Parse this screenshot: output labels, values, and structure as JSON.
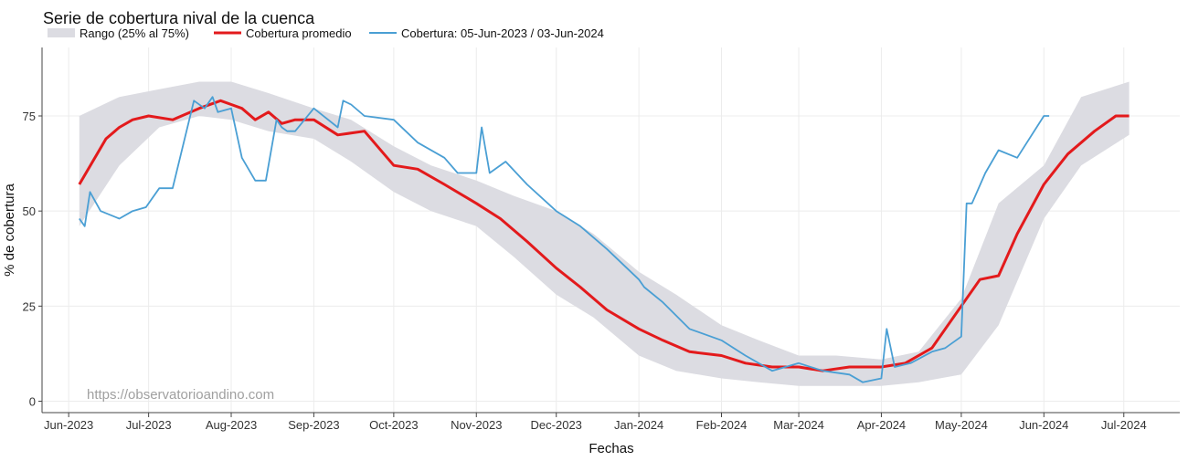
{
  "chart_data": {
    "type": "line",
    "title": "Serie de cobertura nival de la cuenca",
    "xlabel": "Fechas",
    "ylabel": "% de cobertura",
    "ylim": [
      -3,
      93
    ],
    "xlim": [
      "2023-05-22",
      "2024-07-22"
    ],
    "y_ticks": [
      0,
      25,
      50,
      75
    ],
    "x_ticks": [
      {
        "date": "2023-06-01",
        "label": "Jun-2023"
      },
      {
        "date": "2023-07-01",
        "label": "Jul-2023"
      },
      {
        "date": "2023-08-01",
        "label": "Aug-2023"
      },
      {
        "date": "2023-09-01",
        "label": "Sep-2023"
      },
      {
        "date": "2023-10-01",
        "label": "Oct-2023"
      },
      {
        "date": "2023-11-01",
        "label": "Nov-2023"
      },
      {
        "date": "2023-12-01",
        "label": "Dec-2023"
      },
      {
        "date": "2024-01-01",
        "label": "Jan-2024"
      },
      {
        "date": "2024-02-01",
        "label": "Feb-2024"
      },
      {
        "date": "2024-03-01",
        "label": "Mar-2024"
      },
      {
        "date": "2024-04-01",
        "label": "Apr-2024"
      },
      {
        "date": "2024-05-01",
        "label": "May-2024"
      },
      {
        "date": "2024-06-01",
        "label": "Jun-2024"
      },
      {
        "date": "2024-07-01",
        "label": "Jul-2024"
      }
    ],
    "grid": true,
    "legend_position": "top-left",
    "watermark": "https://observatorioandino.com",
    "series": [
      {
        "name": "Rango (25% al 75%)",
        "kind": "band",
        "color": "#dcdce2",
        "x": [
          "2023-06-05",
          "2023-06-20",
          "2023-07-05",
          "2023-07-20",
          "2023-08-01",
          "2023-08-15",
          "2023-09-01",
          "2023-09-15",
          "2023-10-01",
          "2023-10-15",
          "2023-11-01",
          "2023-11-15",
          "2023-12-01",
          "2023-12-15",
          "2024-01-01",
          "2024-01-15",
          "2024-02-01",
          "2024-02-15",
          "2024-03-01",
          "2024-03-15",
          "2024-04-01",
          "2024-04-15",
          "2024-05-01",
          "2024-05-15",
          "2024-06-01",
          "2024-06-15",
          "2024-07-03"
        ],
        "upper": [
          75,
          80,
          82,
          84,
          84,
          81,
          77,
          74,
          67,
          62,
          58,
          54,
          50,
          44,
          34,
          28,
          20,
          16,
          12,
          12,
          11,
          13,
          27,
          52,
          62,
          80,
          84
        ],
        "lower": [
          46,
          62,
          72,
          75,
          74,
          71,
          69,
          63,
          55,
          50,
          46,
          38,
          28,
          22,
          12,
          8,
          6,
          5,
          4,
          4,
          4,
          5,
          7,
          20,
          48,
          62,
          70
        ]
      },
      {
        "name": "Cobertura promedio",
        "kind": "line",
        "color": "#e31a1c",
        "x": [
          "2023-06-05",
          "2023-06-10",
          "2023-06-15",
          "2023-06-20",
          "2023-06-25",
          "2023-07-01",
          "2023-07-10",
          "2023-07-20",
          "2023-07-28",
          "2023-08-05",
          "2023-08-10",
          "2023-08-15",
          "2023-08-20",
          "2023-08-25",
          "2023-09-01",
          "2023-09-10",
          "2023-09-20",
          "2023-10-01",
          "2023-10-10",
          "2023-10-20",
          "2023-11-01",
          "2023-11-10",
          "2023-11-20",
          "2023-12-01",
          "2023-12-10",
          "2023-12-20",
          "2024-01-01",
          "2024-01-10",
          "2024-01-20",
          "2024-02-01",
          "2024-02-10",
          "2024-02-20",
          "2024-03-01",
          "2024-03-10",
          "2024-03-20",
          "2024-04-01",
          "2024-04-10",
          "2024-04-20",
          "2024-05-01",
          "2024-05-08",
          "2024-05-15",
          "2024-05-22",
          "2024-06-01",
          "2024-06-10",
          "2024-06-20",
          "2024-06-28",
          "2024-07-03"
        ],
        "y": [
          57,
          63,
          69,
          72,
          74,
          75,
          74,
          77,
          79,
          77,
          74,
          76,
          73,
          74,
          74,
          70,
          71,
          62,
          61,
          57,
          52,
          48,
          42,
          35,
          30,
          24,
          19,
          16,
          13,
          12,
          10,
          9,
          9,
          8,
          9,
          9,
          10,
          14,
          25,
          32,
          33,
          44,
          57,
          65,
          71,
          75,
          75
        ]
      },
      {
        "name": "Cobertura: 05-Jun-2023 / 03-Jun-2024",
        "kind": "line",
        "color": "#4a9fd4",
        "x": [
          "2023-06-05",
          "2023-06-07",
          "2023-06-09",
          "2023-06-13",
          "2023-06-20",
          "2023-06-25",
          "2023-06-30",
          "2023-07-05",
          "2023-07-10",
          "2023-07-18",
          "2023-07-22",
          "2023-07-25",
          "2023-07-27",
          "2023-08-01",
          "2023-08-05",
          "2023-08-10",
          "2023-08-14",
          "2023-08-18",
          "2023-08-20",
          "2023-08-22",
          "2023-08-25",
          "2023-09-01",
          "2023-09-10",
          "2023-09-12",
          "2023-09-15",
          "2023-09-20",
          "2023-10-01",
          "2023-10-10",
          "2023-10-20",
          "2023-10-25",
          "2023-11-01",
          "2023-11-03",
          "2023-11-06",
          "2023-11-12",
          "2023-11-20",
          "2023-12-01",
          "2023-12-10",
          "2023-12-20",
          "2024-01-01",
          "2024-01-03",
          "2024-01-10",
          "2024-01-20",
          "2024-02-01",
          "2024-02-10",
          "2024-02-20",
          "2024-03-01",
          "2024-03-10",
          "2024-03-20",
          "2024-03-25",
          "2024-04-01",
          "2024-04-03",
          "2024-04-06",
          "2024-04-12",
          "2024-04-20",
          "2024-04-25",
          "2024-05-01",
          "2024-05-03",
          "2024-05-05",
          "2024-05-10",
          "2024-05-15",
          "2024-05-22",
          "2024-06-01",
          "2024-06-03"
        ],
        "y": [
          48,
          46,
          55,
          50,
          48,
          50,
          51,
          56,
          56,
          79,
          77,
          80,
          76,
          77,
          64,
          58,
          58,
          74,
          72,
          71,
          71,
          77,
          72,
          79,
          78,
          75,
          74,
          68,
          64,
          60,
          60,
          72,
          60,
          63,
          57,
          50,
          46,
          40,
          32,
          30,
          26,
          19,
          16,
          12,
          8,
          10,
          8,
          7,
          5,
          6,
          19,
          9,
          10,
          13,
          14,
          17,
          52,
          52,
          60,
          66,
          64,
          75,
          75
        ]
      }
    ]
  }
}
